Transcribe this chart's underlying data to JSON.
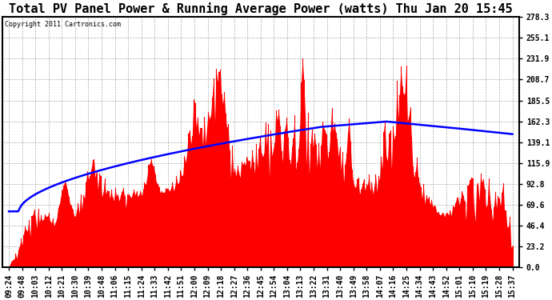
{
  "title": "Total PV Panel Power & Running Average Power (watts) Thu Jan 20 15:45",
  "copyright": "Copyright 2011 Cartronics.com",
  "y_ticks": [
    0.0,
    23.2,
    46.4,
    69.6,
    92.8,
    115.9,
    139.1,
    162.3,
    185.5,
    208.7,
    231.9,
    255.1,
    278.3
  ],
  "y_max": 278.3,
  "x_labels": [
    "09:24",
    "09:48",
    "10:03",
    "10:12",
    "10:21",
    "10:30",
    "10:39",
    "10:48",
    "11:06",
    "11:15",
    "11:24",
    "11:33",
    "11:42",
    "11:51",
    "12:00",
    "12:09",
    "12:18",
    "12:27",
    "12:36",
    "12:45",
    "12:54",
    "13:04",
    "13:13",
    "13:22",
    "13:31",
    "13:40",
    "13:49",
    "13:58",
    "14:07",
    "14:16",
    "14:25",
    "14:34",
    "14:43",
    "14:52",
    "15:01",
    "15:10",
    "15:19",
    "15:28",
    "15:37"
  ],
  "bar_color": "#FF0000",
  "line_color": "#0000FF",
  "background_color": "#FFFFFF",
  "grid_color": "#999999",
  "title_fontsize": 11,
  "tick_fontsize": 7,
  "copyright_fontsize": 6,
  "figsize": [
    6.9,
    3.75
  ],
  "dpi": 100
}
